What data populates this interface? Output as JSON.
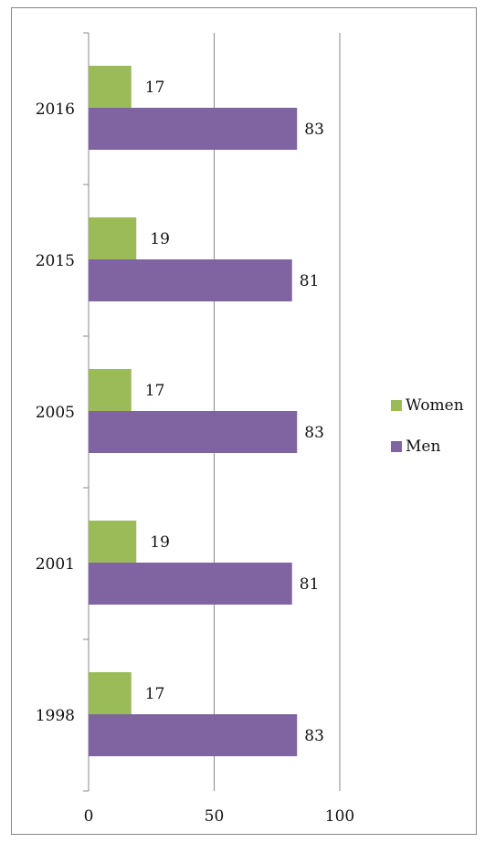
{
  "chart_data": {
    "type": "bar",
    "orientation": "horizontal",
    "categories": [
      "2016",
      "2015",
      "2005",
      "2001",
      "1998"
    ],
    "series": [
      {
        "name": "Women",
        "values": [
          17,
          19,
          17,
          19,
          17
        ],
        "color": "#9bbb59"
      },
      {
        "name": "Men",
        "values": [
          83,
          81,
          83,
          81,
          83
        ],
        "color": "#8064a2"
      }
    ],
    "xlim": [
      0,
      100
    ],
    "xticks": [
      0,
      50,
      100
    ],
    "grid": "vertical",
    "legend_position": "right",
    "data_labels": true
  }
}
